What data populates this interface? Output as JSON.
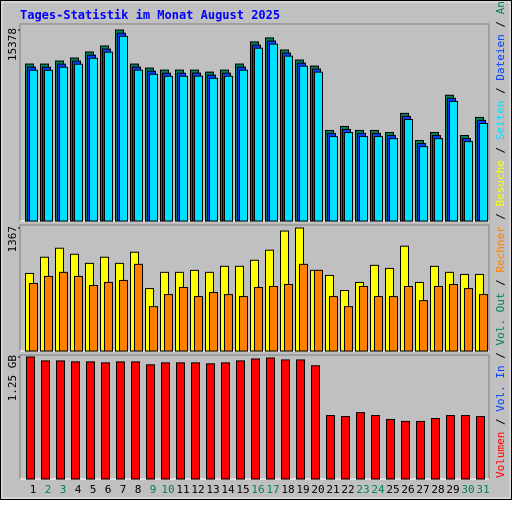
{
  "title": "Tages-Statistik im Monat August 2025",
  "chart_data": [
    {
      "type": "bar",
      "ylim": [
        0,
        15378
      ],
      "yticks": [
        15378
      ],
      "series": [
        {
          "name": "Anfragen",
          "color": "#00805c",
          "values": [
            12636,
            12636,
            12879,
            13122,
            13608,
            14094,
            15378,
            12636,
            12312,
            12150,
            12150,
            12150,
            11988,
            12150,
            12636,
            14418,
            14742,
            13770,
            12960,
            12474,
            7290,
            7614,
            7290,
            7290,
            7128,
            8667,
            6480,
            7128,
            10125,
            6885,
            8343
          ]
        },
        {
          "name": "Dateien",
          "color": "#0040ff",
          "values": [
            12390,
            12380,
            12630,
            12870,
            13350,
            13840,
            15120,
            12390,
            12060,
            11900,
            11900,
            11910,
            11740,
            11900,
            12390,
            14160,
            14490,
            13520,
            12710,
            12230,
            7050,
            7370,
            7050,
            7050,
            6880,
            8420,
            6240,
            6880,
            9880,
            6640,
            8100
          ]
        },
        {
          "name": "Seiten",
          "color": "#00e0ff",
          "values": [
            12140,
            12130,
            12380,
            12620,
            13100,
            13590,
            14870,
            12140,
            11810,
            11650,
            11650,
            11660,
            11490,
            11650,
            12140,
            13910,
            14240,
            13270,
            12460,
            11980,
            6800,
            7120,
            6800,
            6800,
            6630,
            8170,
            5990,
            6630,
            9630,
            6390,
            7850
          ]
        }
      ]
    },
    {
      "type": "bar",
      "ylim": [
        0,
        1367
      ],
      "yticks": [
        1367
      ],
      "series": [
        {
          "name": "Besuche",
          "color": "#ffff00",
          "values": [
            862,
            1042,
            1142,
            1075,
            974,
            1042,
            974,
            1098,
            694,
            874,
            874,
            896,
            874,
            941,
            941,
            1008,
            1120,
            1333,
            1367,
            896,
            840,
            672,
            762,
            952,
            918,
            1165,
            762,
            941,
            874,
            851,
            851
          ]
        },
        {
          "name": "Rechner",
          "color": "#ff8000",
          "values": [
            750,
            829,
            874,
            829,
            728,
            762,
            784,
            963,
            493,
            627,
            706,
            605,
            650,
            627,
            605,
            706,
            717,
            739,
            963,
            896,
            605,
            493,
            717,
            605,
            605,
            717,
            560,
            717,
            739,
            694,
            627
          ]
        }
      ]
    },
    {
      "type": "bar",
      "ylim": [
        0,
        1.25
      ],
      "yticks": [
        {
          "value": 1.25,
          "label": "1.25 GB"
        }
      ],
      "categories": [
        "1",
        "2",
        "3",
        "4",
        "5",
        "6",
        "7",
        "8",
        "9",
        "10",
        "11",
        "12",
        "13",
        "14",
        "15",
        "16",
        "17",
        "18",
        "19",
        "20",
        "21",
        "22",
        "23",
        "24",
        "25",
        "26",
        "27",
        "28",
        "29",
        "30",
        "31"
      ],
      "category_colors": [
        "#000000",
        "#00805c",
        "#00805c",
        "#000000",
        "#000000",
        "#000000",
        "#000000",
        "#000000",
        "#00805c",
        "#00805c",
        "#000000",
        "#000000",
        "#000000",
        "#000000",
        "#000000",
        "#00805c",
        "#00805c",
        "#000000",
        "#000000",
        "#000000",
        "#000000",
        "#000000",
        "#00805c",
        "#00805c",
        "#000000",
        "#000000",
        "#000000",
        "#000000",
        "#000000",
        "#00805c",
        "#00805c"
      ],
      "series": [
        {
          "name": "Volumen",
          "color": "#ff0000",
          "values": [
            1.25,
            1.21,
            1.21,
            1.2,
            1.2,
            1.19,
            1.2,
            1.2,
            1.17,
            1.19,
            1.19,
            1.19,
            1.18,
            1.19,
            1.21,
            1.23,
            1.24,
            1.22,
            1.22,
            1.16,
            0.65,
            0.64,
            0.68,
            0.65,
            0.61,
            0.59,
            0.59,
            0.62,
            0.65,
            0.65,
            0.64
          ]
        }
      ],
      "extra_legend": [
        {
          "name": "Vol. In",
          "color": "#0040ff"
        },
        {
          "name": "Vol. Out",
          "color": "#00805c"
        }
      ]
    }
  ]
}
